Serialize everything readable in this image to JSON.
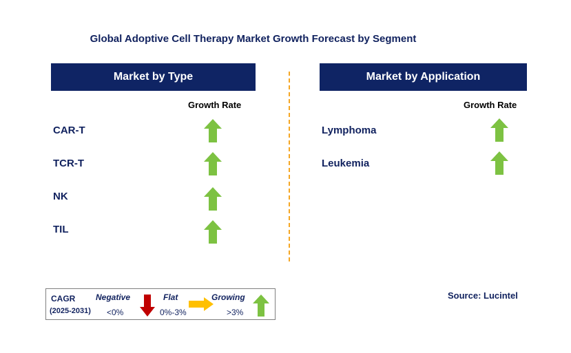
{
  "chart_data": {
    "type": "table",
    "title": "Global Adoptive Cell Therapy Market Growth Forecast by Segment",
    "panels": [
      {
        "header": "Market by Type",
        "column_label": "Growth Rate",
        "segments": [
          {
            "name": "CAR-T",
            "trend": "growing"
          },
          {
            "name": "TCR-T",
            "trend": "growing"
          },
          {
            "name": "NK",
            "trend": "growing"
          },
          {
            "name": "TIL",
            "trend": "growing"
          }
        ]
      },
      {
        "header": "Market by Application",
        "column_label": "Growth Rate",
        "segments": [
          {
            "name": "Lymphoma",
            "trend": "growing"
          },
          {
            "name": "Leukemia",
            "trend": "growing"
          }
        ]
      }
    ],
    "legend": {
      "cagr_label": "CAGR",
      "period": "(2025-2031)",
      "items": [
        {
          "label": "Negative",
          "range": "<0%",
          "icon": "red-down-arrow"
        },
        {
          "label": "Flat",
          "range": "0%-3%",
          "icon": "yellow-right-arrow"
        },
        {
          "label": "Growing",
          "range": ">3%",
          "icon": "green-up-arrow"
        }
      ]
    },
    "source": "Source: Lucintel"
  },
  "colors": {
    "header_bg": "#0f2464",
    "text_navy": "#10215e",
    "growing": "#7dc242",
    "negative": "#c00000",
    "flat": "#ffc000",
    "divider": "#f5a623"
  }
}
